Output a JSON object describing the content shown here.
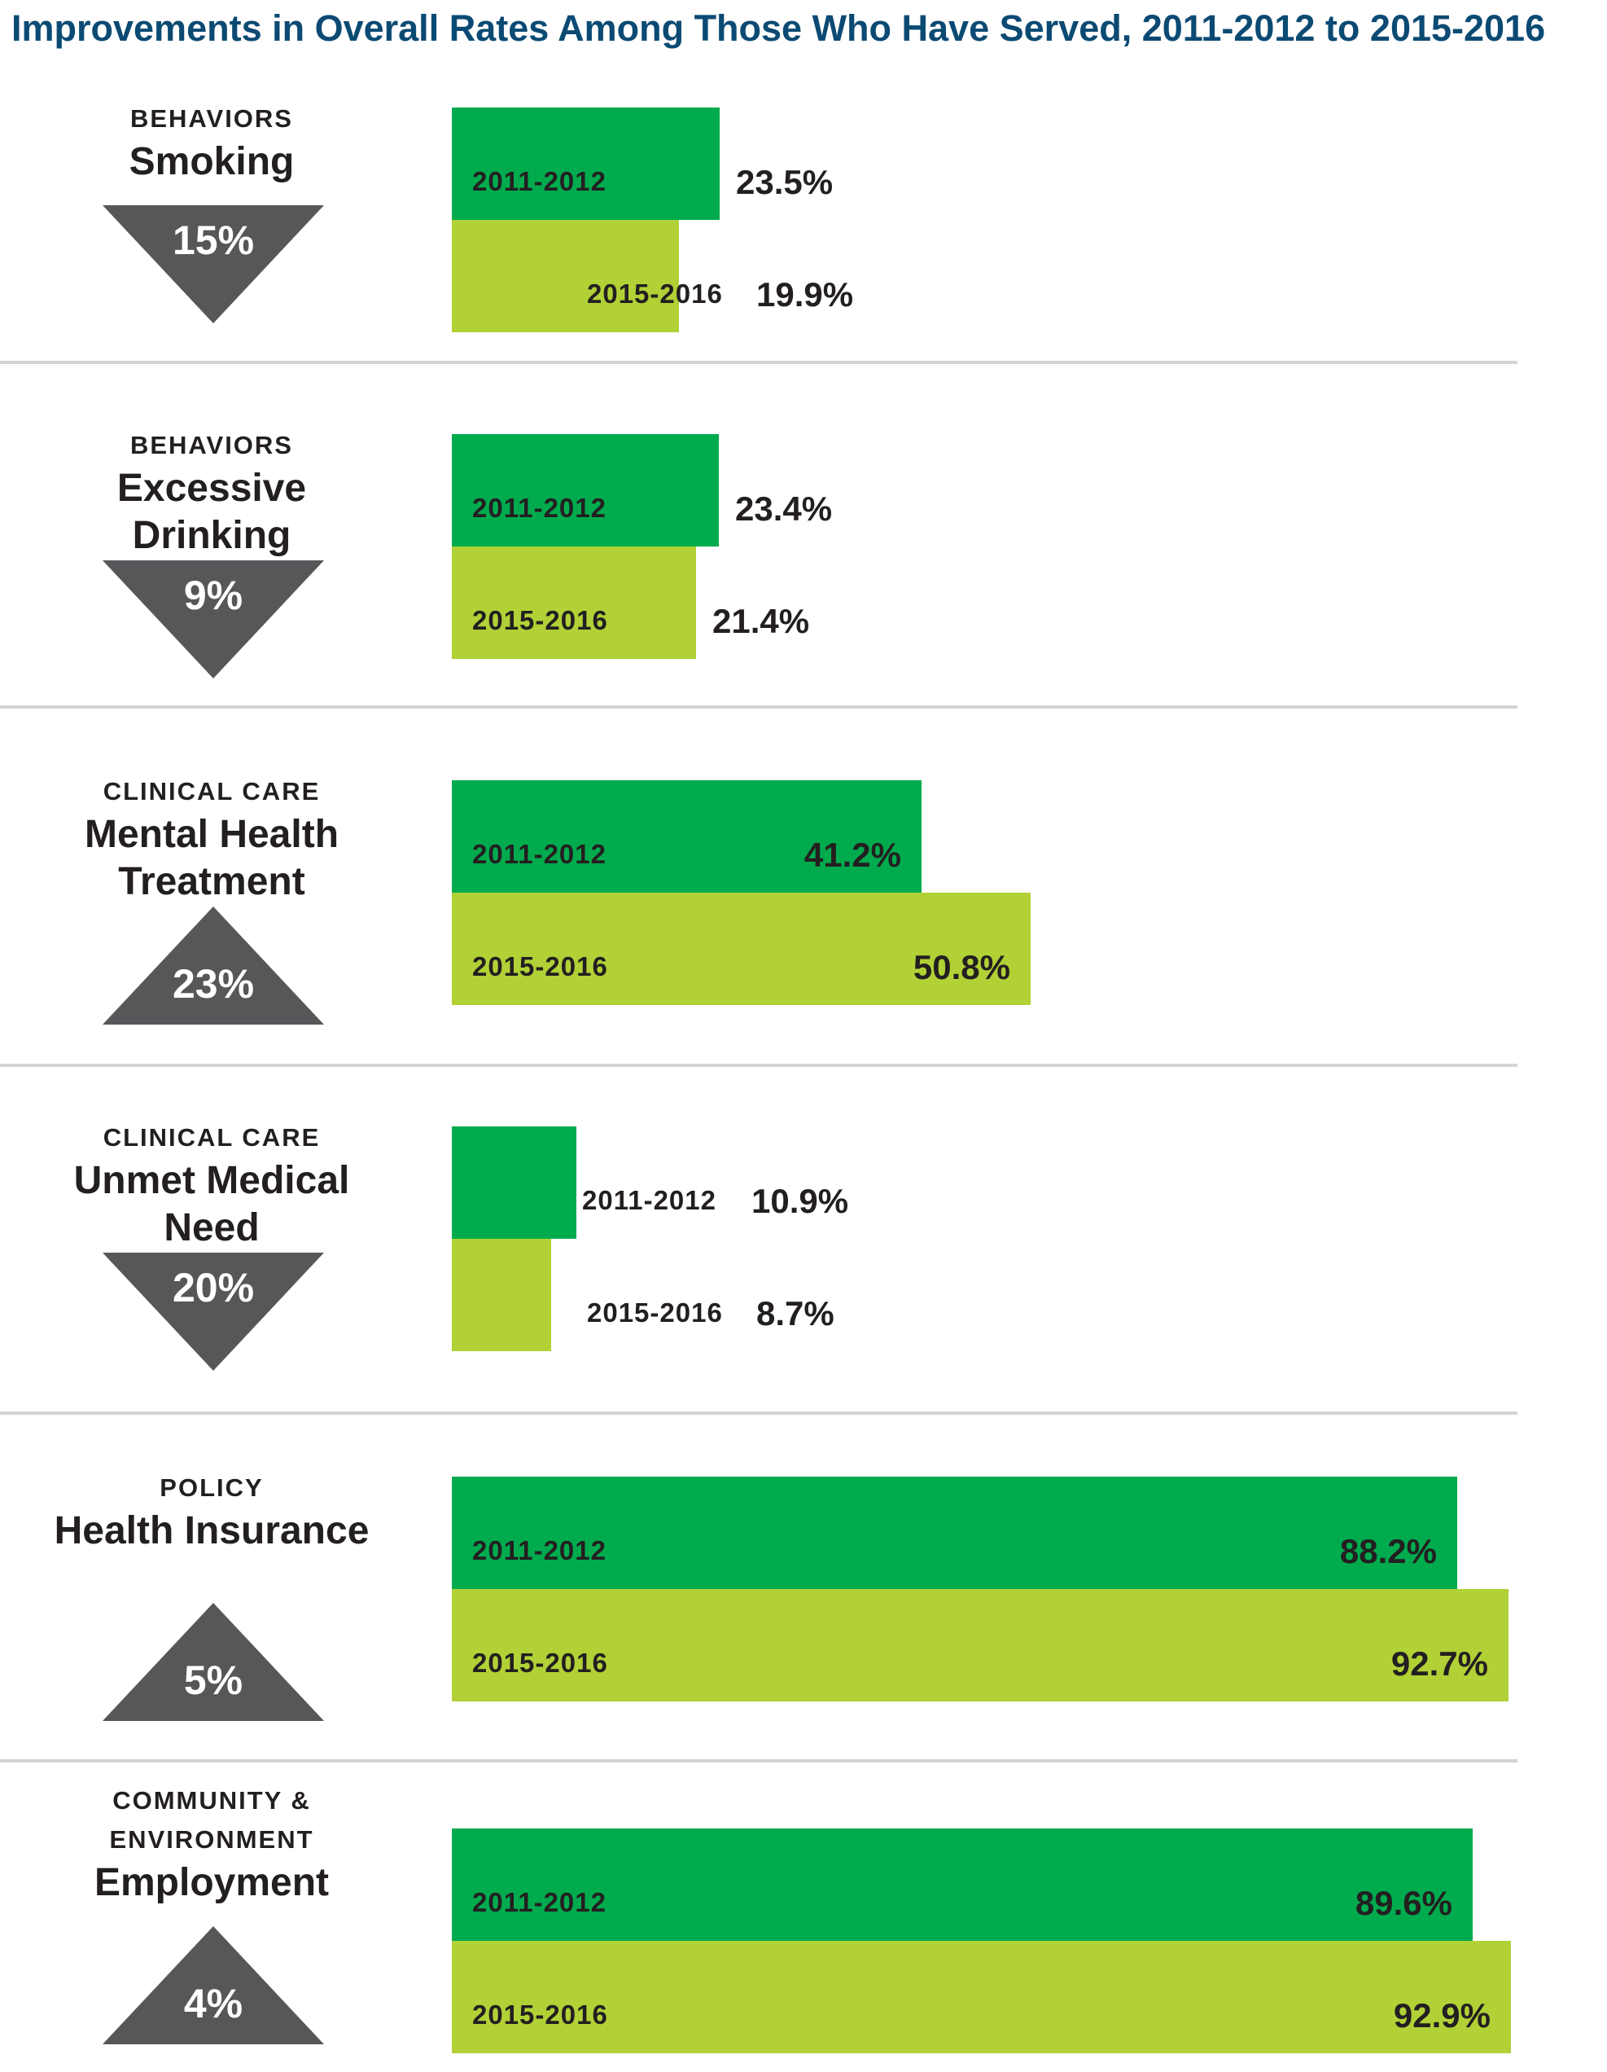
{
  "title": "Improvements in Overall Rates Among Those Who Have Served, 2011-2012 to 2015-2016",
  "chart_data": {
    "type": "bar",
    "orientation": "horizontal",
    "title": "Improvements in Overall Rates Among Those Who Have Served, 2011-2012 to 2015-2016",
    "series_names": [
      "2011-2012",
      "2015-2016"
    ],
    "colors": {
      "2011-2012": "#00ab4e",
      "2015-2016": "#b1d136",
      "indicator": "#555759",
      "title": "#0b4a73"
    },
    "unit": "%",
    "xlim": [
      0,
      92.9
    ],
    "measures": [
      {
        "category": "BEHAVIORS",
        "metric": "Smoking",
        "change": "15%",
        "direction": "down",
        "values": [
          23.5,
          19.9
        ],
        "value_labels": [
          "23.5%",
          "19.9%"
        ]
      },
      {
        "category": "BEHAVIORS",
        "metric": "Excessive Drinking",
        "change": "9%",
        "direction": "down",
        "values": [
          23.4,
          21.4
        ],
        "value_labels": [
          "23.4%",
          "21.4%"
        ]
      },
      {
        "category": "CLINICAL CARE",
        "metric": "Mental Health Treatment",
        "change": "23%",
        "direction": "up",
        "values": [
          41.2,
          50.8
        ],
        "value_labels": [
          "41.2%",
          "50.8%"
        ]
      },
      {
        "category": "CLINICAL CARE",
        "metric": "Unmet Medical Need",
        "change": "20%",
        "direction": "down",
        "values": [
          10.9,
          8.7
        ],
        "value_labels": [
          "10.9%",
          "8.7%"
        ]
      },
      {
        "category": "POLICY",
        "metric": "Health Insurance",
        "change": "5%",
        "direction": "up",
        "values": [
          88.2,
          92.7
        ],
        "value_labels": [
          "88.2%",
          "92.7%"
        ]
      },
      {
        "category": "COMMUNITY & ENVIRONMENT",
        "metric": "Employment",
        "change": "4%",
        "direction": "up",
        "values": [
          89.6,
          92.9
        ],
        "value_labels": [
          "89.6%",
          "92.9%"
        ]
      }
    ]
  }
}
